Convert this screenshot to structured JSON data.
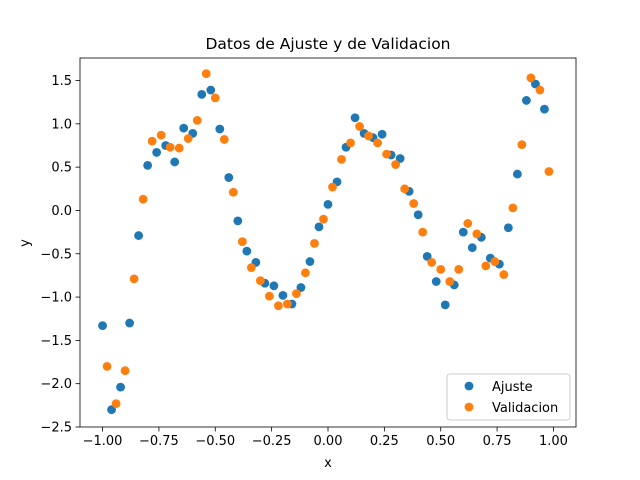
{
  "chart_data": {
    "type": "scatter",
    "title": "Datos de Ajuste y de Validacion",
    "xlabel": "x",
    "ylabel": "y",
    "xlim": [
      -1.1,
      1.1
    ],
    "ylim": [
      -2.5,
      1.76
    ],
    "xticks": [
      -1.0,
      -0.75,
      -0.5,
      -0.25,
      0.0,
      0.25,
      0.5,
      0.75,
      1.0
    ],
    "xtick_labels": [
      "−1.00",
      "−0.75",
      "−0.50",
      "−0.25",
      "0.00",
      "0.25",
      "0.50",
      "0.75",
      "1.00"
    ],
    "yticks": [
      -2.5,
      -2.0,
      -1.5,
      -1.0,
      -0.5,
      0.0,
      0.5,
      1.0,
      1.5
    ],
    "ytick_labels": [
      "−2.5",
      "−2.0",
      "−1.5",
      "−1.0",
      "−0.5",
      "0.0",
      "0.5",
      "1.0",
      "1.5"
    ],
    "grid": false,
    "legend_position": "lower-right",
    "series": [
      {
        "name": "Ajuste",
        "color": "#1f77b4",
        "points": [
          [
            -1.0,
            -1.33
          ],
          [
            -0.96,
            -2.3
          ],
          [
            -0.92,
            -2.04
          ],
          [
            -0.88,
            -1.3
          ],
          [
            -0.84,
            -0.29
          ],
          [
            -0.8,
            0.52
          ],
          [
            -0.76,
            0.67
          ],
          [
            -0.72,
            0.75
          ],
          [
            -0.68,
            0.56
          ],
          [
            -0.64,
            0.95
          ],
          [
            -0.6,
            0.89
          ],
          [
            -0.56,
            1.34
          ],
          [
            -0.52,
            1.39
          ],
          [
            -0.48,
            0.94
          ],
          [
            -0.44,
            0.38
          ],
          [
            -0.4,
            -0.12
          ],
          [
            -0.36,
            -0.47
          ],
          [
            -0.32,
            -0.6
          ],
          [
            -0.28,
            -0.84
          ],
          [
            -0.24,
            -0.87
          ],
          [
            -0.2,
            -0.98
          ],
          [
            -0.16,
            -1.08
          ],
          [
            -0.12,
            -0.89
          ],
          [
            -0.08,
            -0.59
          ],
          [
            -0.04,
            -0.19
          ],
          [
            0.0,
            0.07
          ],
          [
            0.04,
            0.33
          ],
          [
            0.08,
            0.73
          ],
          [
            0.12,
            1.07
          ],
          [
            0.16,
            0.89
          ],
          [
            0.2,
            0.84
          ],
          [
            0.24,
            0.88
          ],
          [
            0.28,
            0.64
          ],
          [
            0.32,
            0.6
          ],
          [
            0.36,
            0.22
          ],
          [
            0.4,
            -0.05
          ],
          [
            0.44,
            -0.53
          ],
          [
            0.48,
            -0.82
          ],
          [
            0.52,
            -1.09
          ],
          [
            0.56,
            -0.86
          ],
          [
            0.6,
            -0.25
          ],
          [
            0.64,
            -0.43
          ],
          [
            0.68,
            -0.31
          ],
          [
            0.72,
            -0.55
          ],
          [
            0.76,
            -0.62
          ],
          [
            0.8,
            -0.2
          ],
          [
            0.84,
            0.42
          ],
          [
            0.88,
            1.27
          ],
          [
            0.92,
            1.46
          ],
          [
            0.96,
            1.17
          ]
        ]
      },
      {
        "name": "Validacion",
        "color": "#ff7f0e",
        "points": [
          [
            -0.98,
            -1.8
          ],
          [
            -0.94,
            -2.23
          ],
          [
            -0.9,
            -1.85
          ],
          [
            -0.86,
            -0.79
          ],
          [
            -0.82,
            0.13
          ],
          [
            -0.78,
            0.8
          ],
          [
            -0.74,
            0.87
          ],
          [
            -0.7,
            0.73
          ],
          [
            -0.66,
            0.72
          ],
          [
            -0.62,
            0.83
          ],
          [
            -0.58,
            1.04
          ],
          [
            -0.54,
            1.58
          ],
          [
            -0.5,
            1.3
          ],
          [
            -0.46,
            0.82
          ],
          [
            -0.42,
            0.21
          ],
          [
            -0.38,
            -0.36
          ],
          [
            -0.34,
            -0.66
          ],
          [
            -0.3,
            -0.81
          ],
          [
            -0.26,
            -0.99
          ],
          [
            -0.22,
            -1.1
          ],
          [
            -0.18,
            -1.08
          ],
          [
            -0.14,
            -0.96
          ],
          [
            -0.1,
            -0.72
          ],
          [
            -0.06,
            -0.38
          ],
          [
            -0.02,
            -0.1
          ],
          [
            0.02,
            0.27
          ],
          [
            0.06,
            0.59
          ],
          [
            0.1,
            0.78
          ],
          [
            0.14,
            0.97
          ],
          [
            0.18,
            0.86
          ],
          [
            0.22,
            0.78
          ],
          [
            0.26,
            0.65
          ],
          [
            0.3,
            0.53
          ],
          [
            0.34,
            0.25
          ],
          [
            0.38,
            0.08
          ],
          [
            0.42,
            -0.25
          ],
          [
            0.46,
            -0.6
          ],
          [
            0.5,
            -0.68
          ],
          [
            0.54,
            -0.82
          ],
          [
            0.58,
            -0.68
          ],
          [
            0.62,
            -0.15
          ],
          [
            0.66,
            -0.27
          ],
          [
            0.7,
            -0.64
          ],
          [
            0.74,
            -0.59
          ],
          [
            0.78,
            -0.74
          ],
          [
            0.82,
            0.03
          ],
          [
            0.86,
            0.76
          ],
          [
            0.9,
            1.53
          ],
          [
            0.94,
            1.39
          ],
          [
            0.98,
            0.45
          ]
        ]
      }
    ]
  }
}
